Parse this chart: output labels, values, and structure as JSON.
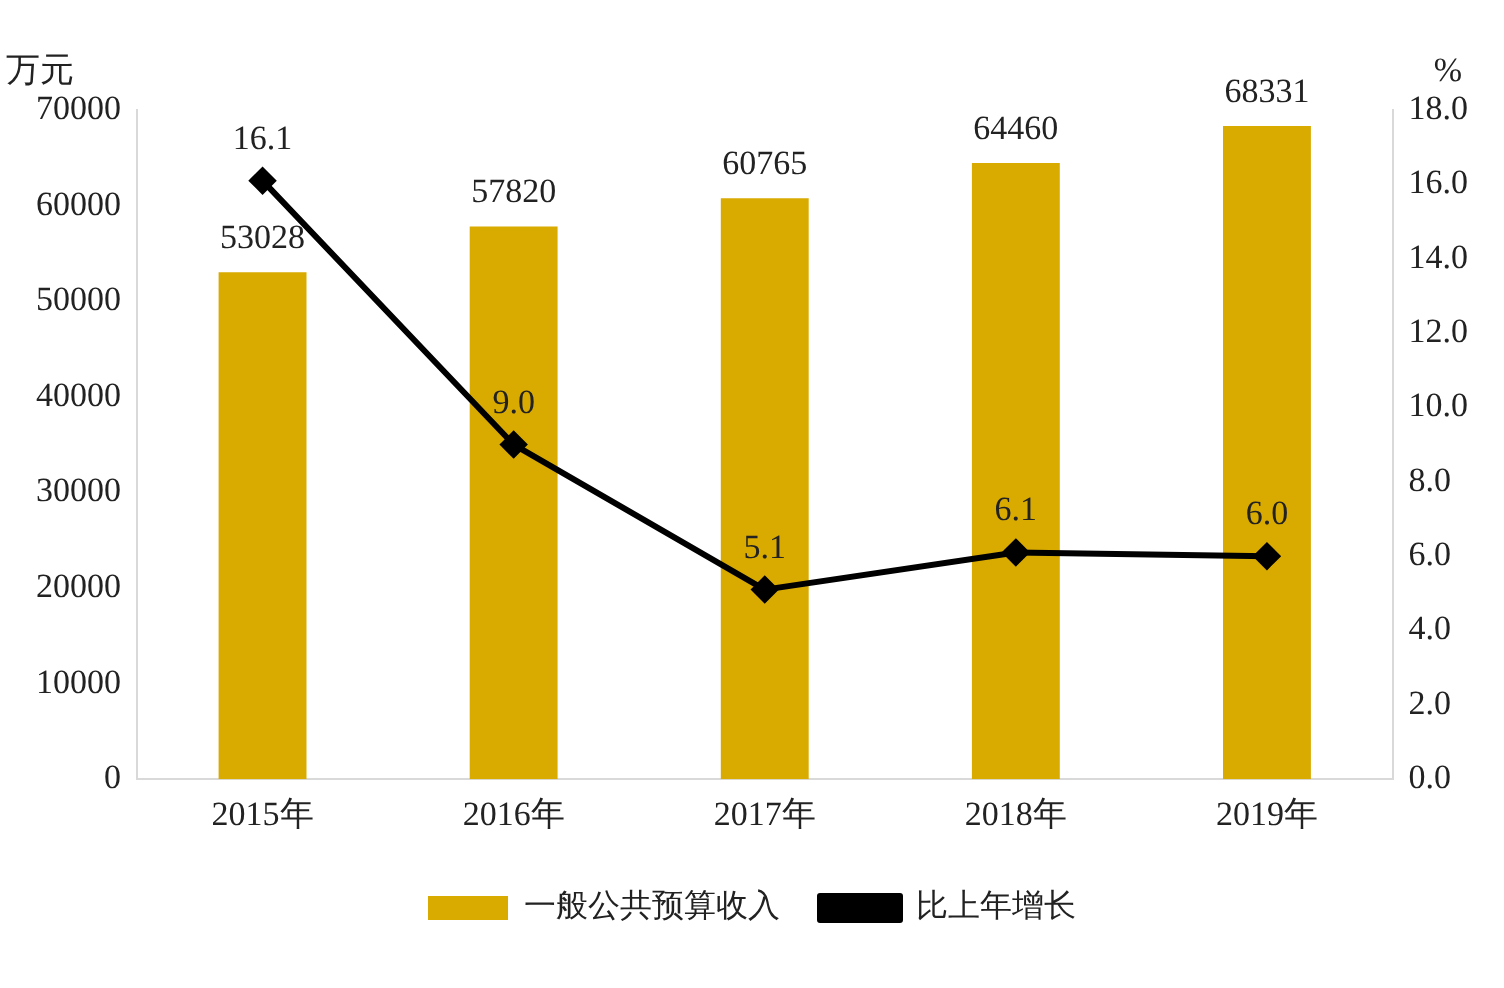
{
  "chart_data": {
    "type": "bar",
    "ylabel": "万元",
    "y2label": "%",
    "categories": [
      "2015年",
      "2016年",
      "2017年",
      "2018年",
      "2019年"
    ],
    "series": [
      {
        "name": "一般公共预算收入",
        "color": "#d9aa00",
        "values": [
          53028,
          57820,
          60765,
          64460,
          68331
        ],
        "value_labels": [
          "53028",
          "57820",
          "60765",
          "64460",
          "68331"
        ]
      },
      {
        "name": "比上年增长",
        "type": "line",
        "axis": "y2",
        "color": "#000000",
        "values": [
          16.1,
          9.0,
          5.1,
          6.1,
          6.0
        ],
        "value_labels": [
          "16.1",
          "9.0",
          "5.1",
          "6.1",
          "6.0"
        ],
        "marker": "diamond",
        "line_style": "solid"
      }
    ],
    "ylim": [
      0,
      70000
    ],
    "yticks": [
      0,
      10000,
      20000,
      30000,
      40000,
      50000,
      60000,
      70000
    ],
    "y2lim": [
      0,
      18
    ],
    "y2ticks": [
      {
        "value": 0,
        "label": "0.0"
      },
      {
        "value": 2,
        "label": "2.0"
      },
      {
        "value": 4,
        "label": "4.0"
      },
      {
        "value": 6,
        "label": "6.0"
      },
      {
        "value": 8,
        "label": "8.0"
      },
      {
        "value": 10,
        "label": "10.0"
      },
      {
        "value": 12,
        "label": "12.0"
      },
      {
        "value": 14,
        "label": "14.0"
      },
      {
        "value": 16,
        "label": "16.0"
      },
      {
        "value": 18,
        "label": "18.0"
      }
    ],
    "grid": false,
    "legend": "bottom"
  }
}
